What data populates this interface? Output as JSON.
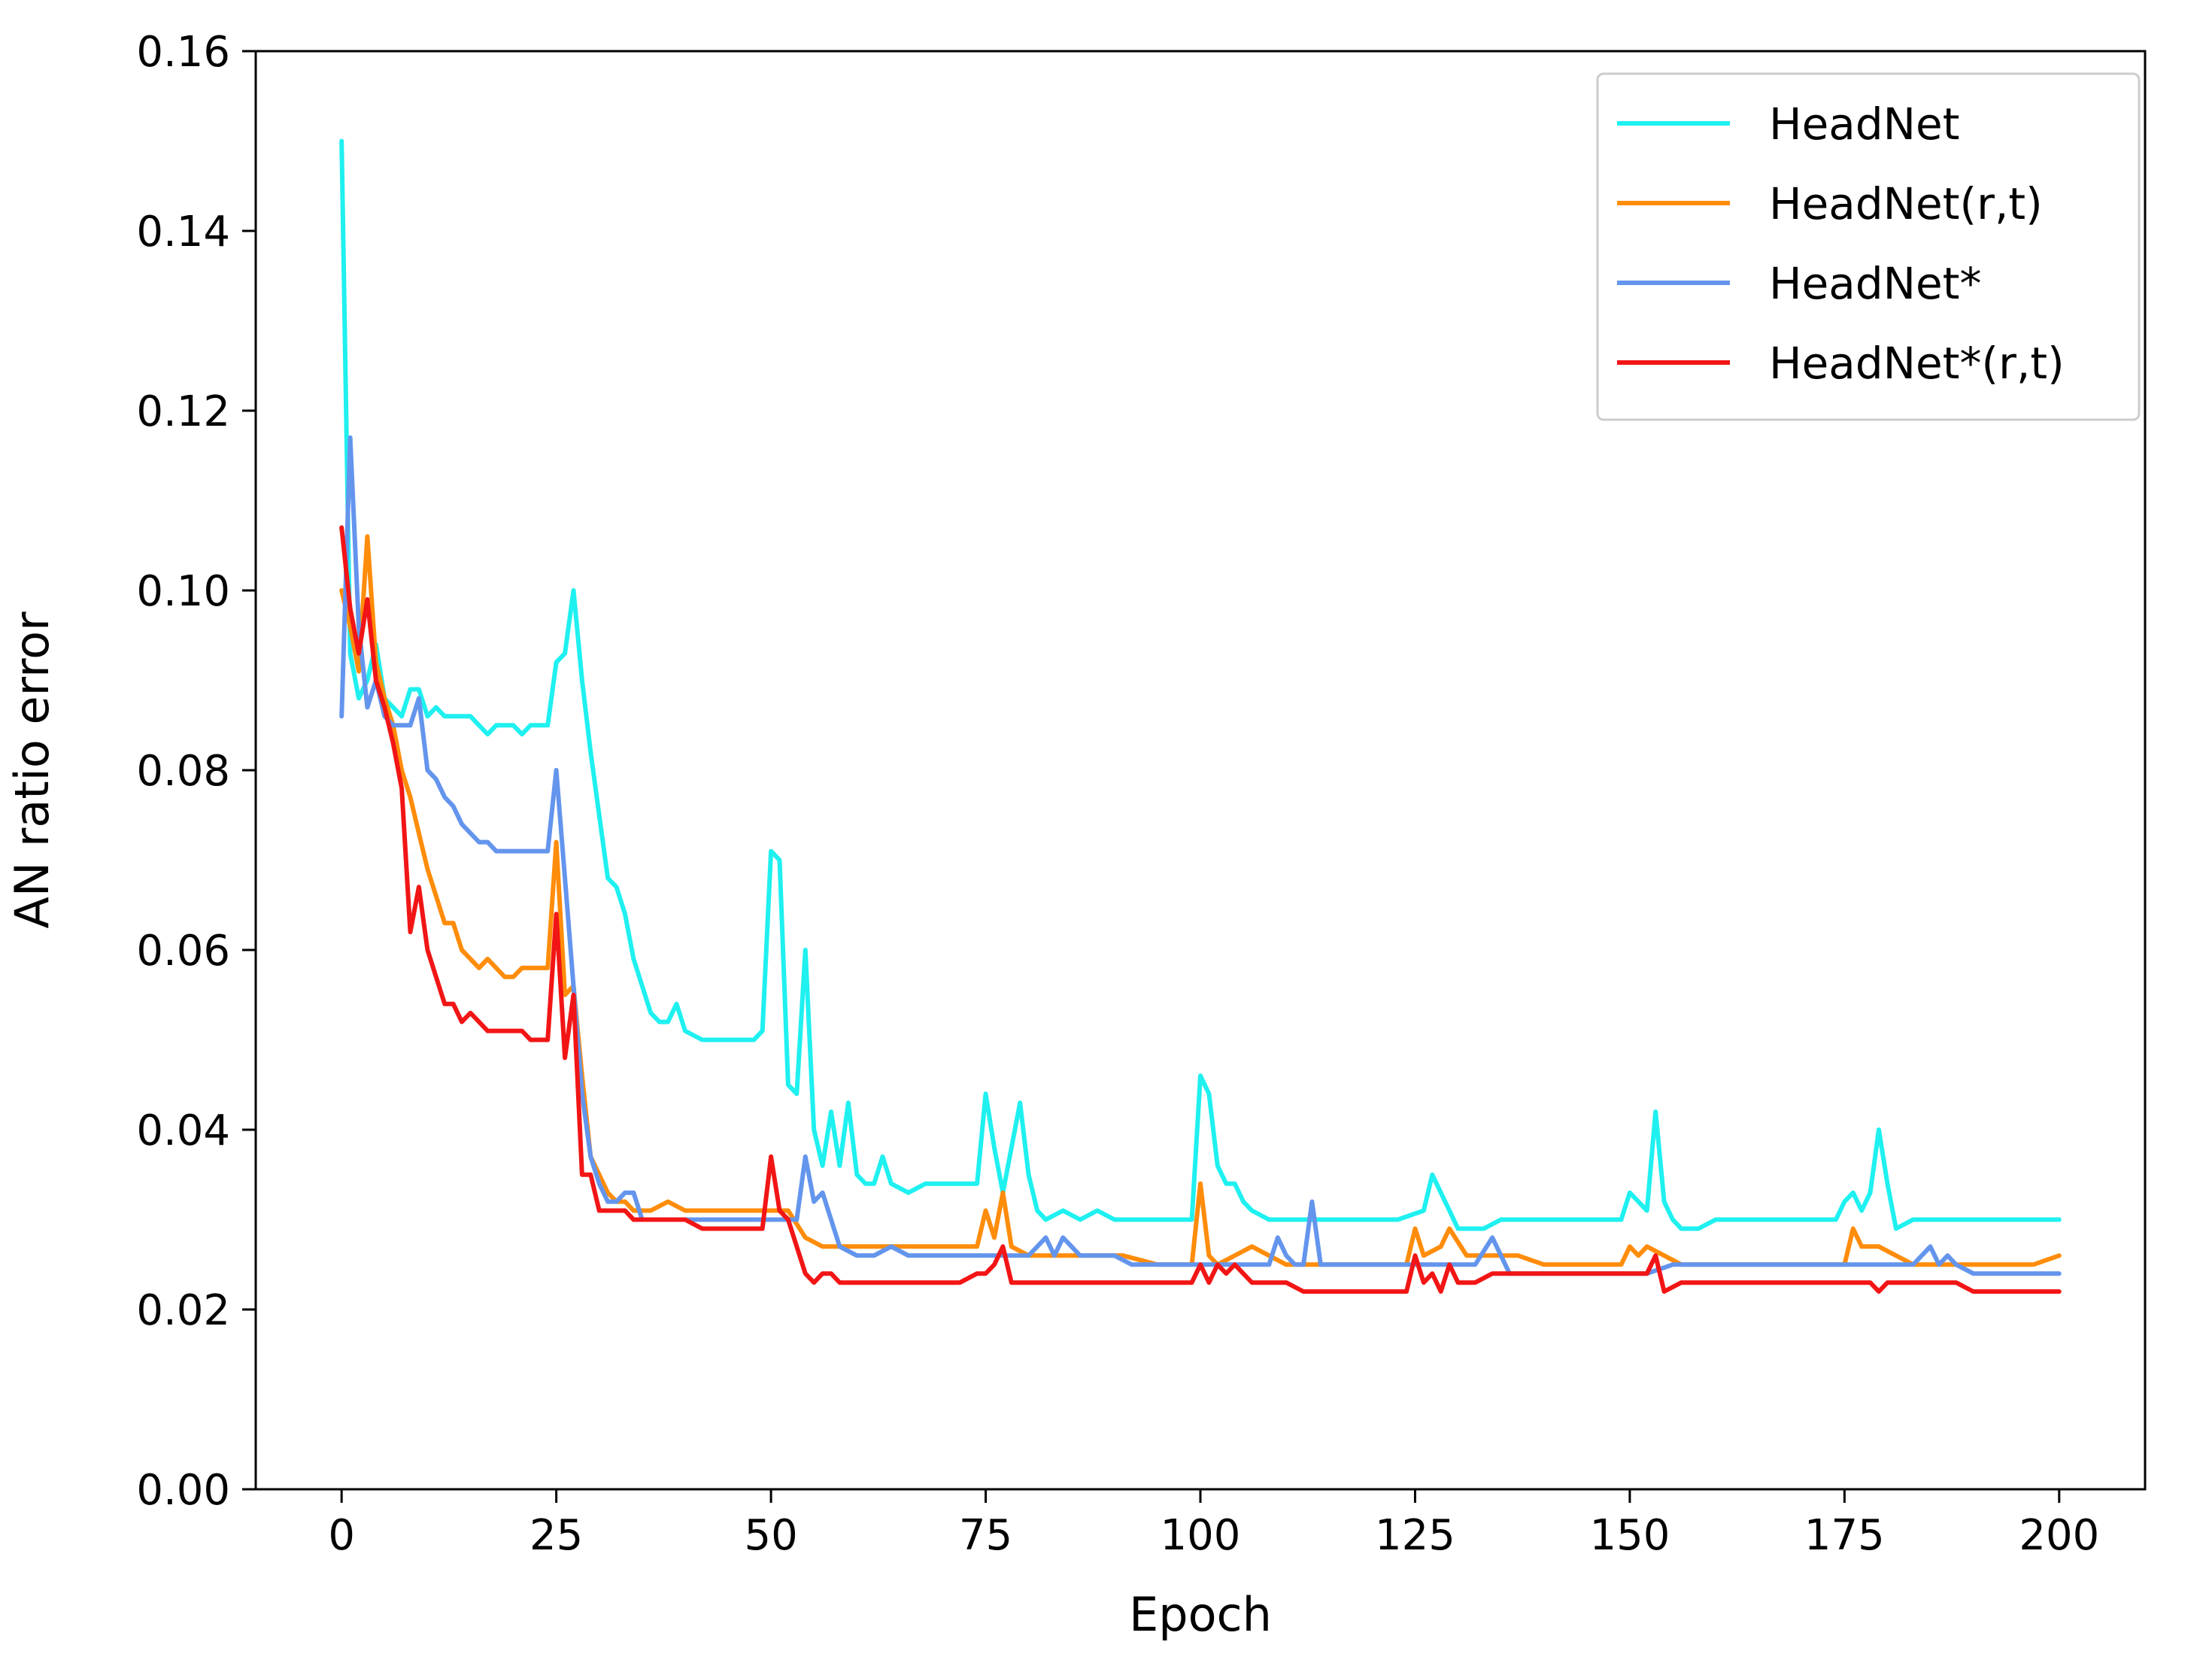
{
  "chart_data": {
    "type": "line",
    "title": "",
    "xlabel": "Epoch",
    "ylabel": "AN ratio error",
    "xlim": [
      -10,
      210
    ],
    "ylim": [
      0.0,
      0.16
    ],
    "xticks": [
      0,
      25,
      50,
      75,
      100,
      125,
      150,
      175,
      200
    ],
    "xtick_labels": [
      "0",
      "25",
      "50",
      "75",
      "100",
      "125",
      "150",
      "175",
      "200"
    ],
    "yticks": [
      0.0,
      0.02,
      0.04,
      0.06,
      0.08,
      0.1,
      0.12,
      0.14,
      0.16
    ],
    "ytick_labels": [
      "0.00",
      "0.02",
      "0.04",
      "0.06",
      "0.08",
      "0.10",
      "0.12",
      "0.14",
      "0.16"
    ],
    "grid": false,
    "legend_position": "top-right",
    "series": [
      {
        "name": "HeadNet",
        "color": "#1ff0f0",
        "x": [
          0,
          1,
          2,
          3,
          4,
          5,
          6,
          7,
          8,
          9,
          10,
          11,
          12,
          13,
          14,
          15,
          16,
          17,
          18,
          19,
          20,
          21,
          22,
          23,
          24,
          25,
          26,
          27,
          28,
          29,
          30,
          31,
          32,
          33,
          34,
          35,
          36,
          37,
          38,
          39,
          40,
          42,
          44,
          46,
          48,
          49,
          50,
          51,
          52,
          53,
          54,
          55,
          56,
          57,
          58,
          59,
          60,
          61,
          62,
          63,
          64,
          66,
          68,
          70,
          72,
          74,
          75,
          76,
          77,
          78,
          79,
          80,
          81,
          82,
          84,
          86,
          88,
          90,
          92,
          95,
          99,
          100,
          101,
          102,
          103,
          104,
          105,
          106,
          108,
          110,
          112,
          115,
          118,
          120,
          123,
          126,
          127,
          128,
          129,
          130,
          131,
          133,
          135,
          138,
          140,
          143,
          146,
          149,
          150,
          151,
          152,
          153,
          154,
          155,
          156,
          158,
          160,
          162,
          165,
          168,
          171,
          174,
          175,
          176,
          177,
          178,
          179,
          180,
          181,
          183,
          185,
          188,
          190,
          193,
          196,
          200
        ],
        "y": [
          0.15,
          0.093,
          0.088,
          0.09,
          0.094,
          0.088,
          0.087,
          0.086,
          0.089,
          0.089,
          0.086,
          0.087,
          0.086,
          0.086,
          0.086,
          0.086,
          0.085,
          0.084,
          0.085,
          0.085,
          0.085,
          0.084,
          0.085,
          0.085,
          0.085,
          0.092,
          0.093,
          0.1,
          0.09,
          0.082,
          0.075,
          0.068,
          0.067,
          0.064,
          0.059,
          0.056,
          0.053,
          0.052,
          0.052,
          0.054,
          0.051,
          0.05,
          0.05,
          0.05,
          0.05,
          0.051,
          0.071,
          0.07,
          0.045,
          0.044,
          0.06,
          0.04,
          0.036,
          0.042,
          0.036,
          0.043,
          0.035,
          0.034,
          0.034,
          0.037,
          0.034,
          0.033,
          0.034,
          0.034,
          0.034,
          0.034,
          0.044,
          0.038,
          0.033,
          0.038,
          0.043,
          0.035,
          0.031,
          0.03,
          0.031,
          0.03,
          0.031,
          0.03,
          0.03,
          0.03,
          0.03,
          0.046,
          0.044,
          0.036,
          0.034,
          0.034,
          0.032,
          0.031,
          0.03,
          0.03,
          0.03,
          0.03,
          0.03,
          0.03,
          0.03,
          0.031,
          0.035,
          0.033,
          0.031,
          0.029,
          0.029,
          0.029,
          0.03,
          0.03,
          0.03,
          0.03,
          0.03,
          0.03,
          0.033,
          0.032,
          0.031,
          0.042,
          0.032,
          0.03,
          0.029,
          0.029,
          0.03,
          0.03,
          0.03,
          0.03,
          0.03,
          0.03,
          0.032,
          0.033,
          0.031,
          0.033,
          0.04,
          0.034,
          0.029,
          0.03,
          0.03,
          0.03,
          0.03,
          0.03,
          0.03,
          0.03
        ]
      },
      {
        "name": "HeadNet(r,t)",
        "color": "#ff8c0a",
        "x": [
          0,
          1,
          2,
          3,
          4,
          5,
          6,
          7,
          8,
          9,
          10,
          11,
          12,
          13,
          14,
          15,
          16,
          17,
          18,
          19,
          20,
          21,
          22,
          23,
          24,
          25,
          26,
          27,
          28,
          29,
          30,
          31,
          32,
          33,
          34,
          35,
          36,
          38,
          40,
          42,
          44,
          46,
          48,
          50,
          52,
          54,
          56,
          58,
          60,
          62,
          64,
          66,
          68,
          70,
          72,
          74,
          75,
          76,
          77,
          78,
          80,
          82,
          85,
          88,
          91,
          95,
          99,
          100,
          101,
          102,
          104,
          106,
          108,
          110,
          112,
          115,
          118,
          121,
          124,
          125,
          126,
          128,
          129,
          131,
          134,
          137,
          140,
          143,
          146,
          149,
          150,
          151,
          152,
          154,
          156,
          158,
          160,
          163,
          166,
          169,
          172,
          175,
          176,
          177,
          179,
          181,
          183,
          185,
          188,
          191,
          194,
          197,
          200
        ],
        "y": [
          0.1,
          0.096,
          0.091,
          0.106,
          0.092,
          0.088,
          0.085,
          0.08,
          0.077,
          0.073,
          0.069,
          0.066,
          0.063,
          0.063,
          0.06,
          0.059,
          0.058,
          0.059,
          0.058,
          0.057,
          0.057,
          0.058,
          0.058,
          0.058,
          0.058,
          0.072,
          0.055,
          0.056,
          0.046,
          0.037,
          0.035,
          0.033,
          0.032,
          0.032,
          0.031,
          0.031,
          0.031,
          0.032,
          0.031,
          0.031,
          0.031,
          0.031,
          0.031,
          0.031,
          0.031,
          0.028,
          0.027,
          0.027,
          0.027,
          0.027,
          0.027,
          0.027,
          0.027,
          0.027,
          0.027,
          0.027,
          0.031,
          0.028,
          0.033,
          0.027,
          0.026,
          0.026,
          0.026,
          0.026,
          0.026,
          0.025,
          0.025,
          0.034,
          0.026,
          0.025,
          0.026,
          0.027,
          0.026,
          0.025,
          0.025,
          0.025,
          0.025,
          0.025,
          0.025,
          0.029,
          0.026,
          0.027,
          0.029,
          0.026,
          0.026,
          0.026,
          0.025,
          0.025,
          0.025,
          0.025,
          0.027,
          0.026,
          0.027,
          0.026,
          0.025,
          0.025,
          0.025,
          0.025,
          0.025,
          0.025,
          0.025,
          0.025,
          0.029,
          0.027,
          0.027,
          0.026,
          0.025,
          0.025,
          0.025,
          0.025,
          0.025,
          0.025,
          0.026
        ]
      },
      {
        "name": "HeadNet*",
        "color": "#6495ed",
        "x": [
          0,
          1,
          2,
          3,
          4,
          5,
          6,
          7,
          8,
          9,
          10,
          11,
          12,
          13,
          14,
          15,
          16,
          17,
          18,
          19,
          20,
          21,
          22,
          23,
          24,
          25,
          26,
          27,
          28,
          29,
          30,
          31,
          32,
          33,
          34,
          35,
          36,
          38,
          40,
          42,
          44,
          46,
          48,
          50,
          51,
          52,
          53,
          54,
          55,
          56,
          57,
          58,
          60,
          62,
          64,
          66,
          68,
          70,
          72,
          75,
          78,
          80,
          82,
          83,
          84,
          85,
          86,
          88,
          90,
          92,
          95,
          98,
          100,
          103,
          106,
          108,
          109,
          110,
          111,
          112,
          113,
          114,
          116,
          118,
          120,
          123,
          126,
          128,
          130,
          132,
          134,
          135,
          136,
          137,
          138,
          140,
          143,
          146,
          149,
          152,
          155,
          158,
          161,
          164,
          167,
          170,
          173,
          176,
          179,
          181,
          183,
          185,
          186,
          187,
          188,
          190,
          193,
          196,
          200
        ],
        "y": [
          0.086,
          0.117,
          0.096,
          0.087,
          0.09,
          0.086,
          0.085,
          0.085,
          0.085,
          0.088,
          0.08,
          0.079,
          0.077,
          0.076,
          0.074,
          0.073,
          0.072,
          0.072,
          0.071,
          0.071,
          0.071,
          0.071,
          0.071,
          0.071,
          0.071,
          0.08,
          0.068,
          0.056,
          0.044,
          0.037,
          0.034,
          0.032,
          0.032,
          0.033,
          0.033,
          0.03,
          0.03,
          0.03,
          0.03,
          0.03,
          0.03,
          0.03,
          0.03,
          0.03,
          0.03,
          0.03,
          0.03,
          0.037,
          0.032,
          0.033,
          0.03,
          0.027,
          0.026,
          0.026,
          0.027,
          0.026,
          0.026,
          0.026,
          0.026,
          0.026,
          0.026,
          0.026,
          0.028,
          0.026,
          0.028,
          0.027,
          0.026,
          0.026,
          0.026,
          0.025,
          0.025,
          0.025,
          0.025,
          0.025,
          0.025,
          0.025,
          0.028,
          0.026,
          0.025,
          0.025,
          0.032,
          0.025,
          0.025,
          0.025,
          0.025,
          0.025,
          0.025,
          0.025,
          0.025,
          0.025,
          0.028,
          0.026,
          0.024,
          0.024,
          0.024,
          0.024,
          0.024,
          0.024,
          0.024,
          0.024,
          0.025,
          0.025,
          0.025,
          0.025,
          0.025,
          0.025,
          0.025,
          0.025,
          0.025,
          0.025,
          0.025,
          0.027,
          0.025,
          0.026,
          0.025,
          0.024,
          0.024,
          0.024,
          0.024
        ]
      },
      {
        "name": "HeadNet*(r,t)",
        "color": "#f21515",
        "x": [
          0,
          1,
          2,
          3,
          4,
          5,
          6,
          7,
          8,
          9,
          10,
          11,
          12,
          13,
          14,
          15,
          16,
          17,
          18,
          19,
          20,
          21,
          22,
          23,
          24,
          25,
          26,
          27,
          28,
          29,
          30,
          31,
          32,
          33,
          34,
          35,
          36,
          38,
          40,
          42,
          44,
          46,
          48,
          49,
          50,
          51,
          52,
          53,
          54,
          55,
          56,
          57,
          58,
          60,
          62,
          64,
          66,
          68,
          70,
          72,
          74,
          75,
          76,
          77,
          78,
          80,
          82,
          84,
          86,
          88,
          90,
          92,
          95,
          98,
          99,
          100,
          101,
          102,
          103,
          104,
          106,
          108,
          110,
          112,
          115,
          118,
          121,
          124,
          125,
          126,
          127,
          128,
          129,
          130,
          132,
          134,
          137,
          140,
          143,
          146,
          149,
          152,
          153,
          154,
          156,
          158,
          161,
          164,
          167,
          170,
          173,
          175,
          176,
          177,
          178,
          179,
          180,
          182,
          184,
          186,
          188,
          190,
          193,
          196,
          200
        ],
        "y": [
          0.107,
          0.098,
          0.093,
          0.099,
          0.09,
          0.087,
          0.083,
          0.078,
          0.062,
          0.067,
          0.06,
          0.057,
          0.054,
          0.054,
          0.052,
          0.053,
          0.052,
          0.051,
          0.051,
          0.051,
          0.051,
          0.051,
          0.05,
          0.05,
          0.05,
          0.064,
          0.048,
          0.055,
          0.035,
          0.035,
          0.031,
          0.031,
          0.031,
          0.031,
          0.03,
          0.03,
          0.03,
          0.03,
          0.03,
          0.029,
          0.029,
          0.029,
          0.029,
          0.029,
          0.037,
          0.031,
          0.03,
          0.027,
          0.024,
          0.023,
          0.024,
          0.024,
          0.023,
          0.023,
          0.023,
          0.023,
          0.023,
          0.023,
          0.023,
          0.023,
          0.024,
          0.024,
          0.025,
          0.027,
          0.023,
          0.023,
          0.023,
          0.023,
          0.023,
          0.023,
          0.023,
          0.023,
          0.023,
          0.023,
          0.023,
          0.025,
          0.023,
          0.025,
          0.024,
          0.025,
          0.023,
          0.023,
          0.023,
          0.022,
          0.022,
          0.022,
          0.022,
          0.022,
          0.026,
          0.023,
          0.024,
          0.022,
          0.025,
          0.023,
          0.023,
          0.024,
          0.024,
          0.024,
          0.024,
          0.024,
          0.024,
          0.024,
          0.026,
          0.022,
          0.023,
          0.023,
          0.023,
          0.023,
          0.023,
          0.023,
          0.023,
          0.023,
          0.023,
          0.023,
          0.023,
          0.022,
          0.023,
          0.023,
          0.023,
          0.023,
          0.023,
          0.022,
          0.022,
          0.022,
          0.022
        ]
      }
    ]
  }
}
